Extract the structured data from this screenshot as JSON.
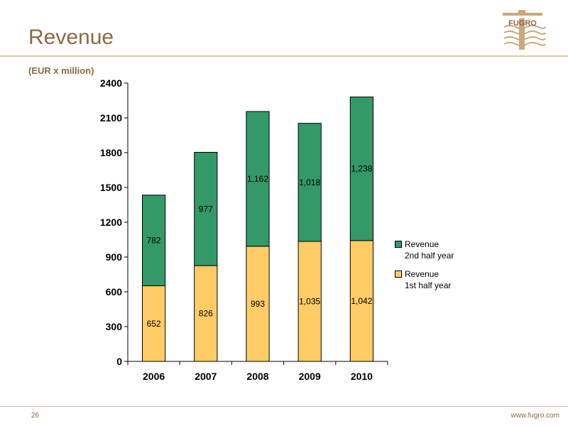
{
  "slide": {
    "title": "Revenue",
    "subtitle": "(EUR x million)",
    "page_number": "26",
    "website": "www.fugro.com",
    "logo_text": "FUGRO"
  },
  "colors": {
    "brand": "#8c6a3f",
    "series_2nd_half": "#339966",
    "series_1st_half": "#ffcc66",
    "rule": "#d9c7a6"
  },
  "chart_data": {
    "type": "bar",
    "stacked": true,
    "categories": [
      "2006",
      "2007",
      "2008",
      "2009",
      "2010"
    ],
    "series": [
      {
        "name": "Revenue 1st half year",
        "values": [
          652,
          826,
          993,
          1035,
          1042
        ],
        "labels": [
          "652",
          "826",
          "993",
          "1,035",
          "1,042"
        ],
        "color": "#ffcc66"
      },
      {
        "name": "Revenue 2nd half year",
        "values": [
          782,
          977,
          1162,
          1018,
          1238
        ],
        "labels": [
          "782",
          "977",
          "1,162",
          "1,018",
          "1,238"
        ],
        "color": "#339966"
      }
    ],
    "ylim": [
      0,
      2400
    ],
    "yticks": [
      0,
      300,
      600,
      900,
      1200,
      1500,
      1800,
      2100,
      2400
    ],
    "legend": [
      {
        "line1": "Revenue",
        "line2": "2nd half year",
        "color": "#339966"
      },
      {
        "line1": "Revenue",
        "line2": "1st half year",
        "color": "#ffcc66"
      }
    ],
    "legend_position": "right",
    "grid": false
  }
}
